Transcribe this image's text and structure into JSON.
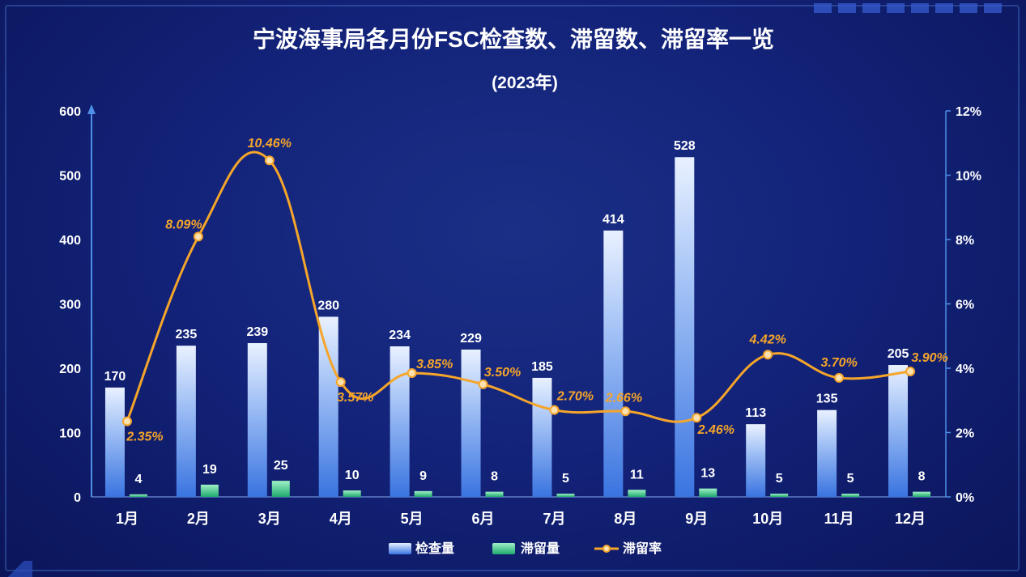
{
  "chart_data": {
    "type": "bar",
    "title": "宁波海事局各月份FSC检查数、滞留数、滞留率一览",
    "subtitle": "(2023年)",
    "categories": [
      "1月",
      "2月",
      "3月",
      "4月",
      "5月",
      "6月",
      "7月",
      "8月",
      "9月",
      "10月",
      "11月",
      "12月"
    ],
    "series": [
      {
        "name": "检查量",
        "type": "bar",
        "axis": "left",
        "color": "#4a86ea",
        "values": [
          170,
          235,
          239,
          280,
          234,
          229,
          185,
          414,
          528,
          113,
          135,
          205
        ]
      },
      {
        "name": "滞留量",
        "type": "bar",
        "axis": "left",
        "color": "#2fcf8c",
        "values": [
          4,
          19,
          25,
          10,
          9,
          8,
          5,
          11,
          13,
          5,
          5,
          8
        ]
      },
      {
        "name": "滞留率",
        "type": "line",
        "axis": "right",
        "color": "#f5a52a",
        "values": [
          2.35,
          8.09,
          10.46,
          3.57,
          3.85,
          3.5,
          2.7,
          2.66,
          2.46,
          4.42,
          3.7,
          3.9
        ],
        "labels": [
          "2.35%",
          "8.09%",
          "10.46%",
          "3.57%",
          "3.85%",
          "3.50%",
          "2.70%",
          "2.66%",
          "2.46%",
          "4.42%",
          "3.70%",
          "3.90%"
        ]
      }
    ],
    "y_left": {
      "min": 0,
      "max": 600,
      "ticks": [
        "0",
        "100",
        "200",
        "300",
        "400",
        "500",
        "600"
      ]
    },
    "y_right": {
      "min": 0,
      "max": 12,
      "ticks": [
        "0%",
        "2%",
        "4%",
        "6%",
        "8%",
        "10%",
        "12%"
      ]
    },
    "legend_position": "bottom-center",
    "grid": false
  }
}
